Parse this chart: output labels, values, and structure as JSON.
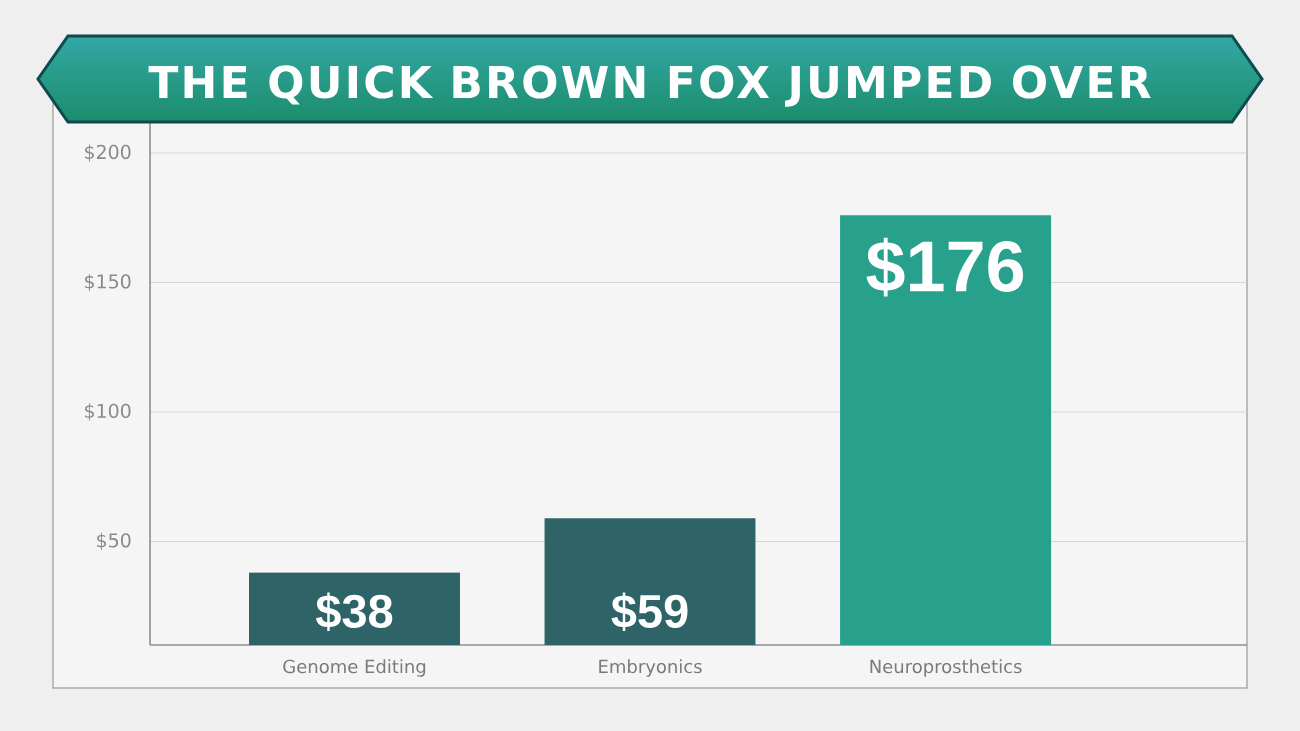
{
  "chart_data": {
    "type": "bar",
    "title": "THE QUICK BROWN FOX JUMPED OVER",
    "categories": [
      "Genome Editing",
      "Embryonics",
      "Neuroprosthetics"
    ],
    "values": [
      38,
      59,
      176
    ],
    "colors": [
      "#2e6468",
      "#2e6468",
      "#27a08c"
    ],
    "value_labels": [
      "$38",
      "$59",
      "$176"
    ],
    "ylim": [
      10,
      212
    ],
    "yticks": [
      {
        "value": 50,
        "label": "$50"
      },
      {
        "value": 100,
        "label": "$100"
      },
      {
        "value": 150,
        "label": "$150"
      },
      {
        "value": 200,
        "label": "$200"
      }
    ],
    "grid": "y"
  }
}
